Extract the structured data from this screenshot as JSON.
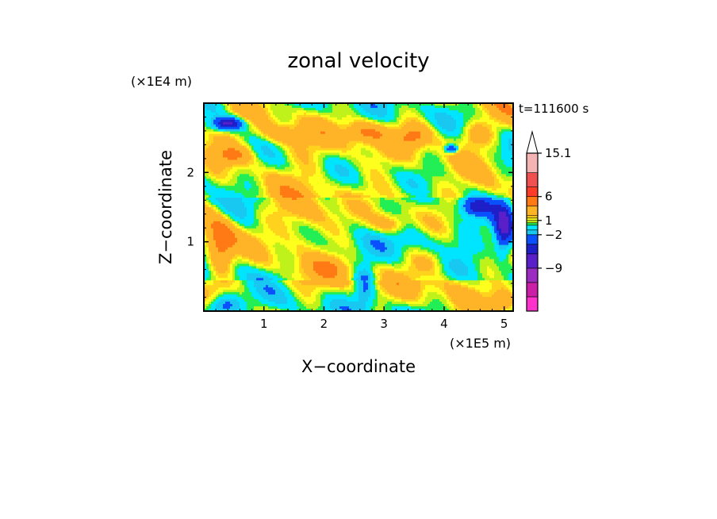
{
  "chart_data": {
    "type": "heatmap",
    "title": "zonal velocity",
    "xlabel": "X−coordinate",
    "ylabel": "Z−coordinate",
    "x_scale_label": "(×1E5 m)",
    "y_scale_label": "(×1E4 m)",
    "time_label": "t=111600 s",
    "xlim": [
      0,
      5.15
    ],
    "ylim": [
      0,
      3.0
    ],
    "x_ticks": [
      1,
      2,
      3,
      4,
      5
    ],
    "y_ticks": [
      1,
      2
    ],
    "colorbar": {
      "tick_labels": [
        {
          "value": 15.1,
          "label": "15.1"
        },
        {
          "value": 6,
          "label": "6"
        },
        {
          "value": 1,
          "label": "1"
        },
        {
          "value": -2,
          "label": "−2"
        },
        {
          "value": -9,
          "label": "−9"
        }
      ],
      "bins": [
        {
          "from": -18,
          "to": -15,
          "color": "#ff33cc"
        },
        {
          "from": -15,
          "to": -12,
          "color": "#cc1fa8"
        },
        {
          "from": -12,
          "to": -9,
          "color": "#9b2bc1"
        },
        {
          "from": -9,
          "to": -6,
          "color": "#5a1fc9"
        },
        {
          "from": -6,
          "to": -4,
          "color": "#1f1fc8"
        },
        {
          "from": -4,
          "to": -2,
          "color": "#0a50ff"
        },
        {
          "from": -2,
          "to": -1,
          "color": "#18c8f0"
        },
        {
          "from": -1,
          "to": 0,
          "color": "#00e5ff"
        },
        {
          "from": 0,
          "to": 0.5,
          "color": "#22ee55"
        },
        {
          "from": 0.5,
          "to": 1,
          "color": "#bff21a"
        },
        {
          "from": 1,
          "to": 1.5,
          "color": "#ffff1e"
        },
        {
          "from": 1.5,
          "to": 2,
          "color": "#ffd21e"
        },
        {
          "from": 2,
          "to": 4,
          "color": "#ffb428"
        },
        {
          "from": 4,
          "to": 6,
          "color": "#ff7a14"
        },
        {
          "from": 6,
          "to": 8,
          "color": "#ff3c28"
        },
        {
          "from": 8,
          "to": 11,
          "color": "#f05050"
        },
        {
          "from": 11,
          "to": 15.1,
          "color": "#f5b4b4"
        }
      ],
      "extend_max": true
    }
  }
}
